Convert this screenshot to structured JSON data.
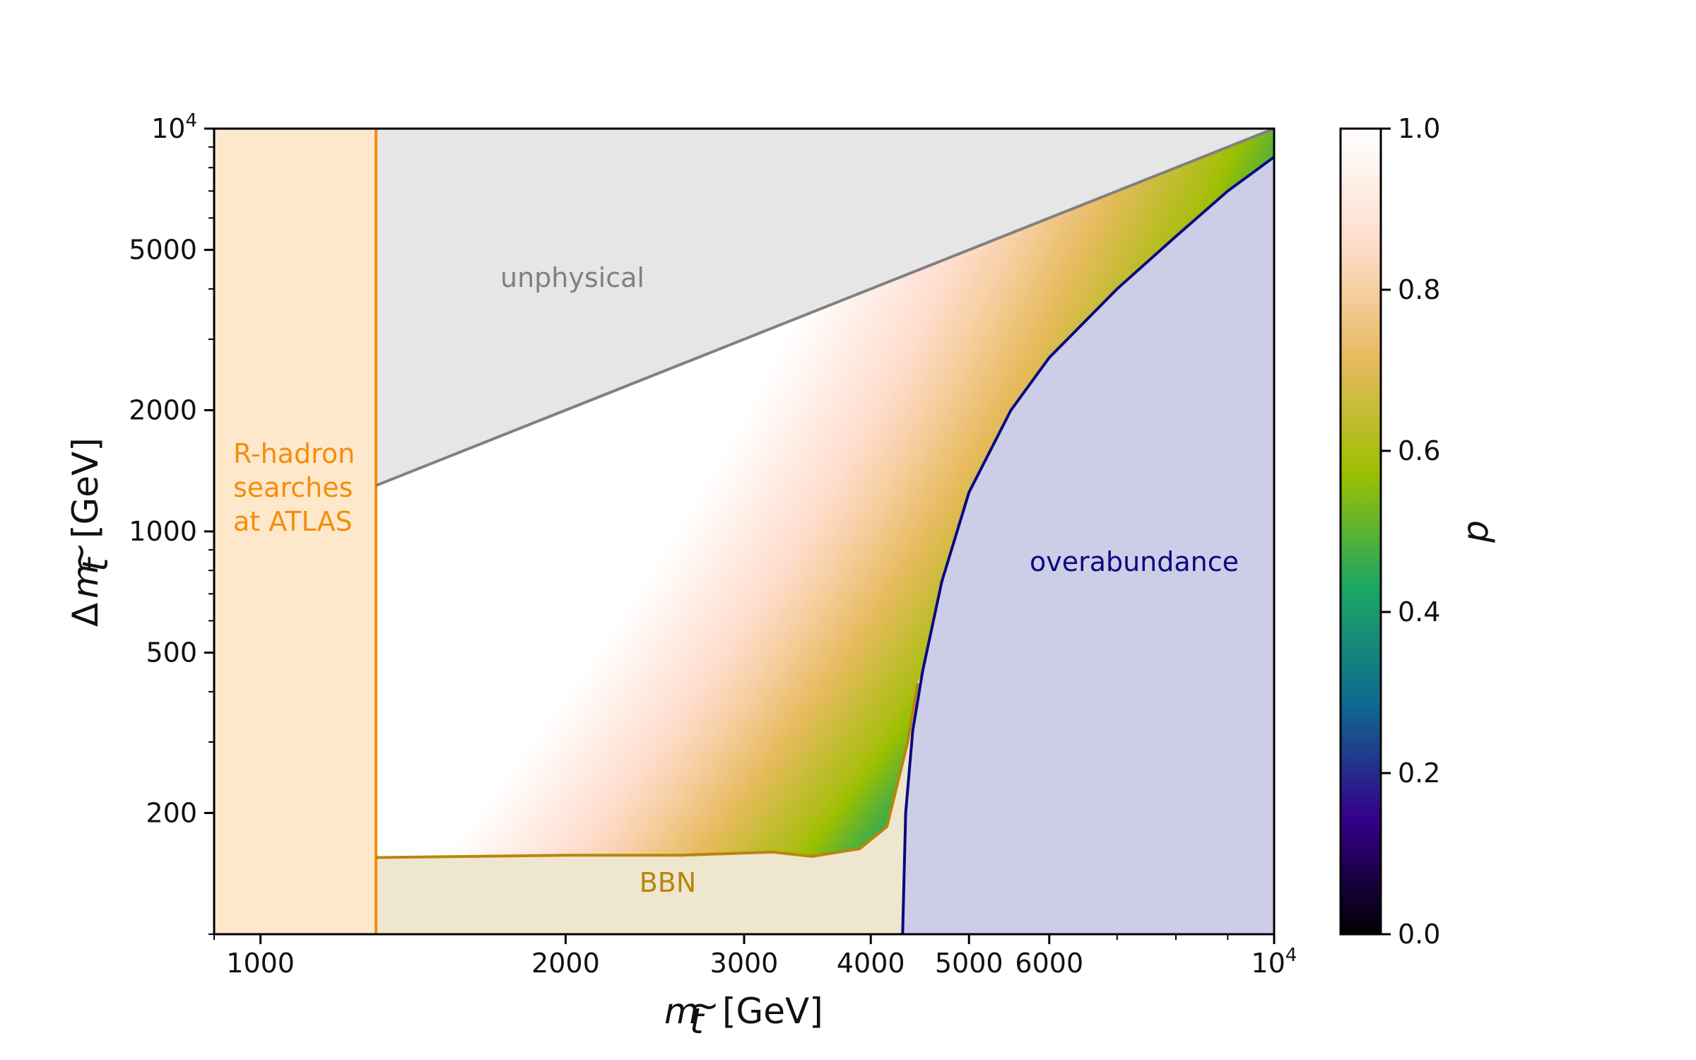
{
  "chart_data": {
    "type": "heatmap",
    "xlabel": "m_t̃ [GeV]",
    "ylabel": "Δm_t̃ [GeV]",
    "xscale": "log",
    "yscale": "log",
    "xlim": [
      900,
      10000
    ],
    "ylim": [
      100,
      10000
    ],
    "x_ticks": [
      {
        "value": 1000,
        "label": "1000"
      },
      {
        "value": 2000,
        "label": "2000"
      },
      {
        "value": 3000,
        "label": "3000"
      },
      {
        "value": 4000,
        "label": "4000"
      },
      {
        "value": 5000,
        "label": "5000"
      },
      {
        "value": 6000,
        "label": "6000"
      },
      {
        "value": 10000,
        "label": "10^4"
      }
    ],
    "y_ticks": [
      {
        "value": 200,
        "label": "200"
      },
      {
        "value": 500,
        "label": "500"
      },
      {
        "value": 1000,
        "label": "1000"
      },
      {
        "value": 2000,
        "label": "2000"
      },
      {
        "value": 5000,
        "label": "5000"
      },
      {
        "value": 10000,
        "label": "10^4"
      }
    ],
    "colorbar": {
      "label": "p",
      "range": [
        0.0,
        1.0
      ],
      "ticks": [
        "0.0",
        "0.2",
        "0.4",
        "0.6",
        "0.8",
        "1.0"
      ],
      "colormap": [
        "#000000",
        "#35008a",
        "#0f6a8f",
        "#1aa664",
        "#9cbf00",
        "#e7ba5e",
        "#ffdccc",
        "#ffffff"
      ]
    },
    "regions": [
      {
        "label": "R-hadron\nsearches\nat ATLAS",
        "color": "#f58d0b",
        "fill": "#fde8cc",
        "x_max": 1300
      },
      {
        "label": "unphysical",
        "color": "#808080",
        "fill": "#e6e6e6",
        "boundary": "Δm = m"
      },
      {
        "label": "BBN",
        "color": "#b8860b",
        "fill": "#efe6d0"
      },
      {
        "label": "overabundance",
        "color": "#0a0a80",
        "fill": "#cdcde8"
      }
    ],
    "bbn_boundary": [
      [
        1300,
        155
      ],
      [
        2000,
        157
      ],
      [
        2600,
        157
      ],
      [
        3200,
        160
      ],
      [
        3500,
        156
      ],
      [
        3900,
        163
      ],
      [
        4150,
        185
      ],
      [
        4350,
        300
      ],
      [
        4450,
        420
      ]
    ],
    "overabundance_boundary": [
      [
        4300,
        100
      ],
      [
        4330,
        200
      ],
      [
        4400,
        320
      ],
      [
        4500,
        450
      ],
      [
        4700,
        750
      ],
      [
        5000,
        1250
      ],
      [
        5500,
        2000
      ],
      [
        6000,
        2700
      ],
      [
        7000,
        4000
      ],
      [
        8000,
        5400
      ],
      [
        9000,
        7000
      ],
      [
        10000,
        8500
      ]
    ],
    "p_contours": [
      {
        "p": 1.0,
        "m_at_100": 1350
      },
      {
        "p": 0.8,
        "m_at_100": 2050
      },
      {
        "p": 0.6,
        "m_at_100": 2950
      },
      {
        "p": 0.4,
        "m_at_100": 3750
      },
      {
        "p": 0.2,
        "m_at_100": 4150
      },
      {
        "p": 0.0,
        "m_at_100": 4300
      }
    ]
  }
}
